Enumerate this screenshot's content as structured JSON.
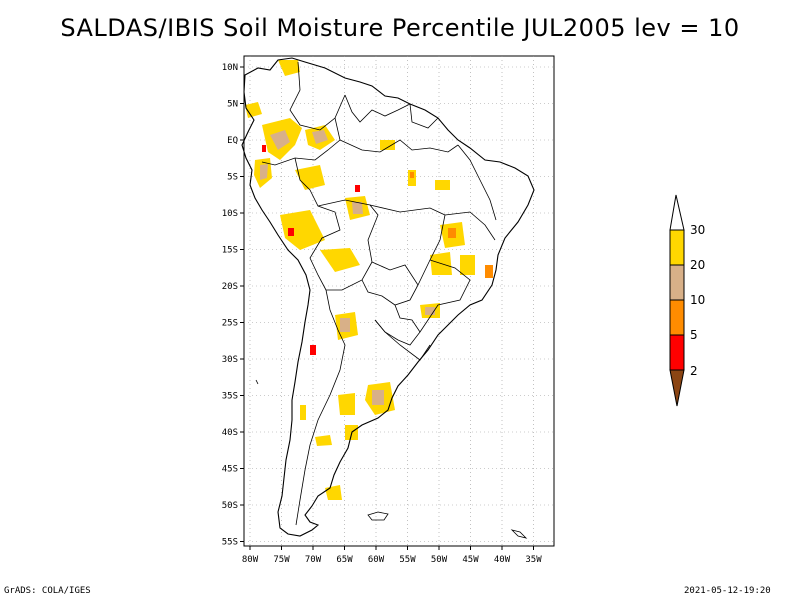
{
  "title": "SALDAS/IBIS Soil Moisture Percentile JUL2005 lev = 10",
  "footer": {
    "left": "GrADS: COLA/IGES",
    "right": "2021-05-12-19:20"
  },
  "map": {
    "region": "South America",
    "lat_labels": [
      "10N",
      "5N",
      "EQ",
      "5S",
      "10S",
      "15S",
      "20S",
      "25S",
      "30S",
      "35S",
      "40S",
      "45S",
      "50S",
      "55S"
    ],
    "lon_labels": [
      "80W",
      "75W",
      "70W",
      "65W",
      "60W",
      "55W",
      "50W",
      "45W",
      "40W",
      "35W"
    ],
    "grid": "dotted"
  },
  "colorbar": {
    "labels": [
      "30",
      "20",
      "10",
      "5",
      "2"
    ],
    "colors": {
      "above30": "#ffffff",
      "20-30": "#ffd700",
      "10-20": "#d8b088",
      "5-10": "#ff8c00",
      "2-5": "#ff0000",
      "below2": "#8b4513"
    }
  }
}
